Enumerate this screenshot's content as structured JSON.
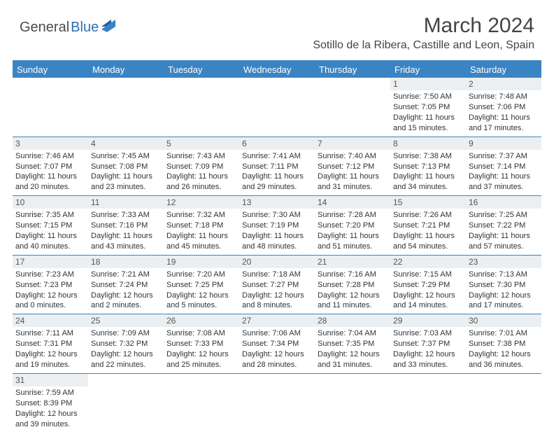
{
  "logo": {
    "part1": "General",
    "part2": "Blue"
  },
  "title": "March 2024",
  "location": "Sotillo de la Ribera, Castille and Leon, Spain",
  "colors": {
    "header_blue": "#3b84c4",
    "daynum_bg": "#eceff1",
    "text": "#333333",
    "logo_gray": "#4a4a4a",
    "logo_blue": "#2a6fb5"
  },
  "weekdays": [
    "Sunday",
    "Monday",
    "Tuesday",
    "Wednesday",
    "Thursday",
    "Friday",
    "Saturday"
  ],
  "weeks": [
    [
      {
        "day": "",
        "sunrise": "",
        "sunset": "",
        "daylight1": "",
        "daylight2": ""
      },
      {
        "day": "",
        "sunrise": "",
        "sunset": "",
        "daylight1": "",
        "daylight2": ""
      },
      {
        "day": "",
        "sunrise": "",
        "sunset": "",
        "daylight1": "",
        "daylight2": ""
      },
      {
        "day": "",
        "sunrise": "",
        "sunset": "",
        "daylight1": "",
        "daylight2": ""
      },
      {
        "day": "",
        "sunrise": "",
        "sunset": "",
        "daylight1": "",
        "daylight2": ""
      },
      {
        "day": "1",
        "sunrise": "Sunrise: 7:50 AM",
        "sunset": "Sunset: 7:05 PM",
        "daylight1": "Daylight: 11 hours",
        "daylight2": "and 15 minutes."
      },
      {
        "day": "2",
        "sunrise": "Sunrise: 7:48 AM",
        "sunset": "Sunset: 7:06 PM",
        "daylight1": "Daylight: 11 hours",
        "daylight2": "and 17 minutes."
      }
    ],
    [
      {
        "day": "3",
        "sunrise": "Sunrise: 7:46 AM",
        "sunset": "Sunset: 7:07 PM",
        "daylight1": "Daylight: 11 hours",
        "daylight2": "and 20 minutes."
      },
      {
        "day": "4",
        "sunrise": "Sunrise: 7:45 AM",
        "sunset": "Sunset: 7:08 PM",
        "daylight1": "Daylight: 11 hours",
        "daylight2": "and 23 minutes."
      },
      {
        "day": "5",
        "sunrise": "Sunrise: 7:43 AM",
        "sunset": "Sunset: 7:09 PM",
        "daylight1": "Daylight: 11 hours",
        "daylight2": "and 26 minutes."
      },
      {
        "day": "6",
        "sunrise": "Sunrise: 7:41 AM",
        "sunset": "Sunset: 7:11 PM",
        "daylight1": "Daylight: 11 hours",
        "daylight2": "and 29 minutes."
      },
      {
        "day": "7",
        "sunrise": "Sunrise: 7:40 AM",
        "sunset": "Sunset: 7:12 PM",
        "daylight1": "Daylight: 11 hours",
        "daylight2": "and 31 minutes."
      },
      {
        "day": "8",
        "sunrise": "Sunrise: 7:38 AM",
        "sunset": "Sunset: 7:13 PM",
        "daylight1": "Daylight: 11 hours",
        "daylight2": "and 34 minutes."
      },
      {
        "day": "9",
        "sunrise": "Sunrise: 7:37 AM",
        "sunset": "Sunset: 7:14 PM",
        "daylight1": "Daylight: 11 hours",
        "daylight2": "and 37 minutes."
      }
    ],
    [
      {
        "day": "10",
        "sunrise": "Sunrise: 7:35 AM",
        "sunset": "Sunset: 7:15 PM",
        "daylight1": "Daylight: 11 hours",
        "daylight2": "and 40 minutes."
      },
      {
        "day": "11",
        "sunrise": "Sunrise: 7:33 AM",
        "sunset": "Sunset: 7:16 PM",
        "daylight1": "Daylight: 11 hours",
        "daylight2": "and 43 minutes."
      },
      {
        "day": "12",
        "sunrise": "Sunrise: 7:32 AM",
        "sunset": "Sunset: 7:18 PM",
        "daylight1": "Daylight: 11 hours",
        "daylight2": "and 45 minutes."
      },
      {
        "day": "13",
        "sunrise": "Sunrise: 7:30 AM",
        "sunset": "Sunset: 7:19 PM",
        "daylight1": "Daylight: 11 hours",
        "daylight2": "and 48 minutes."
      },
      {
        "day": "14",
        "sunrise": "Sunrise: 7:28 AM",
        "sunset": "Sunset: 7:20 PM",
        "daylight1": "Daylight: 11 hours",
        "daylight2": "and 51 minutes."
      },
      {
        "day": "15",
        "sunrise": "Sunrise: 7:26 AM",
        "sunset": "Sunset: 7:21 PM",
        "daylight1": "Daylight: 11 hours",
        "daylight2": "and 54 minutes."
      },
      {
        "day": "16",
        "sunrise": "Sunrise: 7:25 AM",
        "sunset": "Sunset: 7:22 PM",
        "daylight1": "Daylight: 11 hours",
        "daylight2": "and 57 minutes."
      }
    ],
    [
      {
        "day": "17",
        "sunrise": "Sunrise: 7:23 AM",
        "sunset": "Sunset: 7:23 PM",
        "daylight1": "Daylight: 12 hours",
        "daylight2": "and 0 minutes."
      },
      {
        "day": "18",
        "sunrise": "Sunrise: 7:21 AM",
        "sunset": "Sunset: 7:24 PM",
        "daylight1": "Daylight: 12 hours",
        "daylight2": "and 2 minutes."
      },
      {
        "day": "19",
        "sunrise": "Sunrise: 7:20 AM",
        "sunset": "Sunset: 7:25 PM",
        "daylight1": "Daylight: 12 hours",
        "daylight2": "and 5 minutes."
      },
      {
        "day": "20",
        "sunrise": "Sunrise: 7:18 AM",
        "sunset": "Sunset: 7:27 PM",
        "daylight1": "Daylight: 12 hours",
        "daylight2": "and 8 minutes."
      },
      {
        "day": "21",
        "sunrise": "Sunrise: 7:16 AM",
        "sunset": "Sunset: 7:28 PM",
        "daylight1": "Daylight: 12 hours",
        "daylight2": "and 11 minutes."
      },
      {
        "day": "22",
        "sunrise": "Sunrise: 7:15 AM",
        "sunset": "Sunset: 7:29 PM",
        "daylight1": "Daylight: 12 hours",
        "daylight2": "and 14 minutes."
      },
      {
        "day": "23",
        "sunrise": "Sunrise: 7:13 AM",
        "sunset": "Sunset: 7:30 PM",
        "daylight1": "Daylight: 12 hours",
        "daylight2": "and 17 minutes."
      }
    ],
    [
      {
        "day": "24",
        "sunrise": "Sunrise: 7:11 AM",
        "sunset": "Sunset: 7:31 PM",
        "daylight1": "Daylight: 12 hours",
        "daylight2": "and 19 minutes."
      },
      {
        "day": "25",
        "sunrise": "Sunrise: 7:09 AM",
        "sunset": "Sunset: 7:32 PM",
        "daylight1": "Daylight: 12 hours",
        "daylight2": "and 22 minutes."
      },
      {
        "day": "26",
        "sunrise": "Sunrise: 7:08 AM",
        "sunset": "Sunset: 7:33 PM",
        "daylight1": "Daylight: 12 hours",
        "daylight2": "and 25 minutes."
      },
      {
        "day": "27",
        "sunrise": "Sunrise: 7:06 AM",
        "sunset": "Sunset: 7:34 PM",
        "daylight1": "Daylight: 12 hours",
        "daylight2": "and 28 minutes."
      },
      {
        "day": "28",
        "sunrise": "Sunrise: 7:04 AM",
        "sunset": "Sunset: 7:35 PM",
        "daylight1": "Daylight: 12 hours",
        "daylight2": "and 31 minutes."
      },
      {
        "day": "29",
        "sunrise": "Sunrise: 7:03 AM",
        "sunset": "Sunset: 7:37 PM",
        "daylight1": "Daylight: 12 hours",
        "daylight2": "and 33 minutes."
      },
      {
        "day": "30",
        "sunrise": "Sunrise: 7:01 AM",
        "sunset": "Sunset: 7:38 PM",
        "daylight1": "Daylight: 12 hours",
        "daylight2": "and 36 minutes."
      }
    ],
    [
      {
        "day": "31",
        "sunrise": "Sunrise: 7:59 AM",
        "sunset": "Sunset: 8:39 PM",
        "daylight1": "Daylight: 12 hours",
        "daylight2": "and 39 minutes."
      },
      {
        "day": "",
        "sunrise": "",
        "sunset": "",
        "daylight1": "",
        "daylight2": ""
      },
      {
        "day": "",
        "sunrise": "",
        "sunset": "",
        "daylight1": "",
        "daylight2": ""
      },
      {
        "day": "",
        "sunrise": "",
        "sunset": "",
        "daylight1": "",
        "daylight2": ""
      },
      {
        "day": "",
        "sunrise": "",
        "sunset": "",
        "daylight1": "",
        "daylight2": ""
      },
      {
        "day": "",
        "sunrise": "",
        "sunset": "",
        "daylight1": "",
        "daylight2": ""
      },
      {
        "day": "",
        "sunrise": "",
        "sunset": "",
        "daylight1": "",
        "daylight2": ""
      }
    ]
  ]
}
